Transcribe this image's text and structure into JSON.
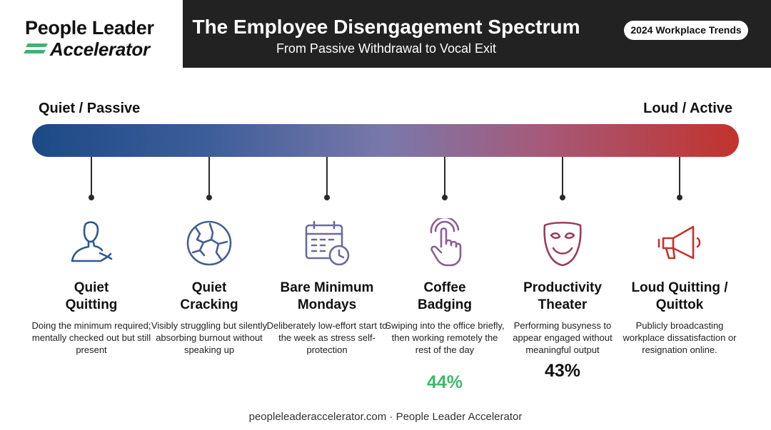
{
  "brand": {
    "line1": "People Leader",
    "line2": "Accelerator",
    "accent_color": "#3cb371"
  },
  "header": {
    "title": "The Employee Disengagement Spectrum",
    "subtitle": "From Passive Withdrawal to Vocal Exit",
    "badge": "2024 Workplace Trends"
  },
  "spectrum": {
    "left_label": "Quiet / Passive",
    "right_label": "Loud / Active",
    "colors": [
      "#1c4a86",
      "#7a78aa",
      "#c2332c"
    ]
  },
  "items": [
    {
      "name": "Quiet\nQuitting",
      "desc": "Doing the minimum required; mentally checked out but still present",
      "icon": "person-leaving-icon",
      "color": "#2b5a92",
      "stat": ""
    },
    {
      "name": "Quiet\nCracking",
      "desc": "Visibly struggling but silently absorbing burnout without speaking up",
      "icon": "cracked-circle-icon",
      "color": "#475d96",
      "stat": ""
    },
    {
      "name": "Bare Minimum\nMondays",
      "desc": "Deliberately low-effort start to the week as stress self-protection",
      "icon": "calendar-clock-icon",
      "color": "#6a6aa2",
      "stat": ""
    },
    {
      "name": "Coffee\nBadging",
      "desc": "Swiping into the office briefly, then working remotely the rest of the day",
      "icon": "pointing-hand-icon",
      "color": "#8b5e96",
      "stat": "44%",
      "stat_color": "#3fb86b"
    },
    {
      "name": "Productivity\nTheater",
      "desc": "Performing busyness to appear engaged without meaningful output",
      "icon": "theater-mask-icon",
      "color": "#9c3d5a",
      "stat": "43%",
      "stat_color": "#111111"
    },
    {
      "name": "Loud Quitting /\nQuittok",
      "desc": "Publicly broadcasting workplace dissatisfaction or resignation online.",
      "icon": "megaphone-icon",
      "color": "#c2332c",
      "stat": ""
    }
  ],
  "footer": "peopleleaderaccelerator.com · People Leader Accelerator"
}
